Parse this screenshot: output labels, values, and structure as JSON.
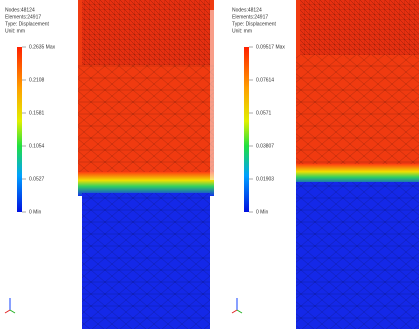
{
  "panels": [
    {
      "info": [
        "Nodes:48124",
        "Elements:24917",
        "Type: Displacement",
        "Unit: mm"
      ],
      "scale": [
        "0.2635 Max",
        "0.2108",
        "0.1581",
        "0.1054",
        "0.0527",
        "0 Min"
      ]
    },
    {
      "info": [
        "Nodes:48124",
        "Elements:24917",
        "Type: Displacement",
        "Unit: mm"
      ],
      "scale": [
        "0.09517 Max",
        "0.07614",
        "0.0571",
        "0.03807",
        "0.01903",
        "0 Min"
      ]
    }
  ]
}
